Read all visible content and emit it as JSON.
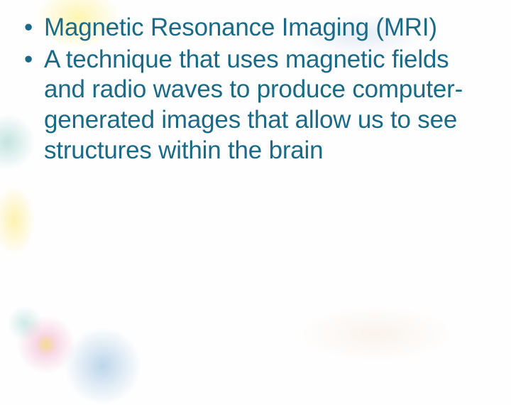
{
  "slide": {
    "bullets": [
      {
        "text": "Magnetic Resonance Imaging (MRI)"
      },
      {
        "text": "A technique that uses magnetic fields and radio waves to produce computer-generated images that allow us to see structures within the brain"
      }
    ]
  },
  "style": {
    "text_color": "#1a6a87",
    "background_color": "#fefefe",
    "font_family": "Verdana",
    "font_size_pt": 26,
    "decoration_colors": {
      "yellow": "#ffe764",
      "teal": "#5ab4aa",
      "blue": "#468cc8",
      "pink": "#eb8cb4",
      "warm": "#e6b48c"
    }
  }
}
